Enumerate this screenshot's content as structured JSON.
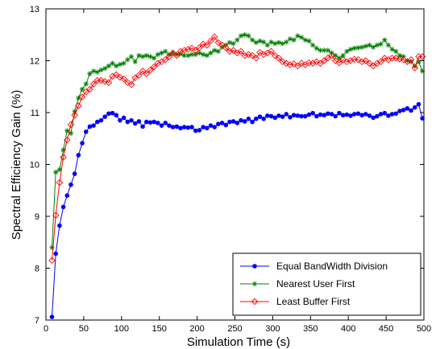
{
  "chart_data": {
    "type": "line",
    "title": "",
    "xlabel": "Simulation Time (s)",
    "ylabel": "Spectral Efficiency Gain (%)",
    "xlim": [
      0,
      500
    ],
    "ylim": [
      7,
      13
    ],
    "xticks": [
      "0",
      "50",
      "100",
      "150",
      "200",
      "250",
      "300",
      "350",
      "400",
      "450",
      "500"
    ],
    "yticks": [
      "7",
      "8",
      "9",
      "10",
      "11",
      "12",
      "13"
    ],
    "grid": false,
    "legend_position": "bottom-right",
    "x": [
      8,
      13,
      18,
      23,
      28,
      33,
      38,
      43,
      48,
      53,
      58,
      63,
      68,
      73,
      78,
      83,
      88,
      93,
      98,
      103,
      108,
      113,
      118,
      123,
      128,
      133,
      138,
      143,
      148,
      153,
      158,
      163,
      168,
      173,
      178,
      183,
      188,
      193,
      198,
      203,
      208,
      213,
      218,
      223,
      228,
      233,
      238,
      243,
      248,
      253,
      258,
      263,
      268,
      273,
      278,
      283,
      288,
      293,
      298,
      303,
      308,
      313,
      318,
      323,
      328,
      333,
      338,
      343,
      348,
      353,
      358,
      363,
      368,
      373,
      378,
      383,
      388,
      393,
      398,
      403,
      408,
      413,
      418,
      423,
      428,
      433,
      438,
      443,
      448,
      453,
      458,
      463,
      468,
      473,
      478,
      483,
      488,
      493,
      498
    ],
    "series": [
      {
        "name": "Equal BandWidth Division",
        "color": "#0000ff",
        "marker": "dot",
        "values": [
          7.06,
          8.28,
          8.82,
          9.18,
          9.4,
          9.61,
          9.82,
          10.18,
          10.41,
          10.63,
          10.73,
          10.75,
          10.82,
          10.85,
          10.92,
          10.98,
          10.99,
          10.95,
          10.85,
          10.9,
          10.82,
          10.85,
          10.79,
          10.83,
          10.73,
          10.82,
          10.81,
          10.82,
          10.8,
          10.75,
          10.8,
          10.75,
          10.72,
          10.73,
          10.7,
          10.72,
          10.71,
          10.72,
          10.65,
          10.66,
          10.72,
          10.7,
          10.75,
          10.72,
          10.78,
          10.8,
          10.76,
          10.82,
          10.83,
          10.8,
          10.85,
          10.83,
          10.88,
          10.82,
          10.88,
          10.92,
          10.88,
          10.94,
          10.93,
          10.9,
          10.94,
          10.92,
          10.97,
          10.91,
          10.95,
          10.94,
          10.93,
          10.93,
          10.96,
          10.99,
          10.93,
          10.96,
          10.95,
          10.98,
          10.97,
          10.93,
          10.99,
          10.95,
          10.96,
          10.94,
          10.97,
          10.98,
          10.95,
          10.97,
          10.94,
          10.9,
          10.93,
          10.97,
          10.99,
          10.94,
          10.97,
          10.98,
          11.03,
          11.05,
          11.08,
          11.04,
          11.1,
          11.16,
          10.89
        ]
      },
      {
        "name": "Nearest User First",
        "color": "#008000",
        "marker": "star",
        "values": [
          8.4,
          9.85,
          9.9,
          10.28,
          10.65,
          10.6,
          11.02,
          11.28,
          11.45,
          11.55,
          11.75,
          11.8,
          11.78,
          11.82,
          11.85,
          11.9,
          11.95,
          11.9,
          11.93,
          11.95,
          12.02,
          12.08,
          11.98,
          12.1,
          12.08,
          12.1,
          12.08,
          12.05,
          12.12,
          12.15,
          12.18,
          12.12,
          12.15,
          12.12,
          12.13,
          12.1,
          12.1,
          12.12,
          12.12,
          12.15,
          12.12,
          12.1,
          12.15,
          12.2,
          12.18,
          12.26,
          12.3,
          12.35,
          12.33,
          12.4,
          12.48,
          12.5,
          12.48,
          12.4,
          12.35,
          12.38,
          12.36,
          12.3,
          12.36,
          12.33,
          12.35,
          12.33,
          12.36,
          12.42,
          12.4,
          12.48,
          12.45,
          12.4,
          12.38,
          12.3,
          12.24,
          12.2,
          12.2,
          12.2,
          12.15,
          12.1,
          12.05,
          12.1,
          12.18,
          12.22,
          12.24,
          12.25,
          12.26,
          12.28,
          12.3,
          12.26,
          12.3,
          12.32,
          12.4,
          12.3,
          12.22,
          12.18,
          12.1,
          12.08,
          12.0,
          11.98,
          11.9,
          11.98,
          11.8
        ]
      },
      {
        "name": "Least Buffer First",
        "color": "#ff0000",
        "marker": "diamond",
        "values": [
          8.15,
          9.02,
          9.65,
          10.14,
          10.47,
          10.77,
          10.95,
          11.13,
          11.3,
          11.4,
          11.45,
          11.55,
          11.62,
          11.62,
          11.6,
          11.58,
          11.7,
          11.73,
          11.68,
          11.65,
          11.58,
          11.54,
          11.67,
          11.72,
          11.8,
          11.75,
          11.82,
          11.88,
          11.95,
          11.98,
          12.02,
          12.08,
          12.15,
          12.1,
          12.18,
          12.2,
          12.22,
          12.24,
          12.2,
          12.25,
          12.32,
          12.3,
          12.38,
          12.46,
          12.35,
          12.3,
          12.25,
          12.18,
          12.2,
          12.15,
          12.18,
          12.1,
          12.12,
          12.1,
          12.05,
          12.16,
          12.12,
          12.15,
          12.18,
          12.1,
          12.05,
          11.98,
          11.95,
          11.92,
          11.94,
          11.9,
          11.95,
          11.92,
          11.96,
          11.95,
          11.98,
          11.95,
          12.0,
          12.05,
          12.1,
          12.0,
          11.96,
          12.02,
          11.98,
          12.0,
          12.03,
          12.02,
          11.98,
          12.0,
          11.95,
          11.9,
          11.95,
          11.98,
          12.05,
          12.02,
          12.05,
          12.05,
          12.03,
          12.02,
          11.98,
          12.02,
          11.86,
          12.08,
          12.08
        ]
      }
    ]
  }
}
